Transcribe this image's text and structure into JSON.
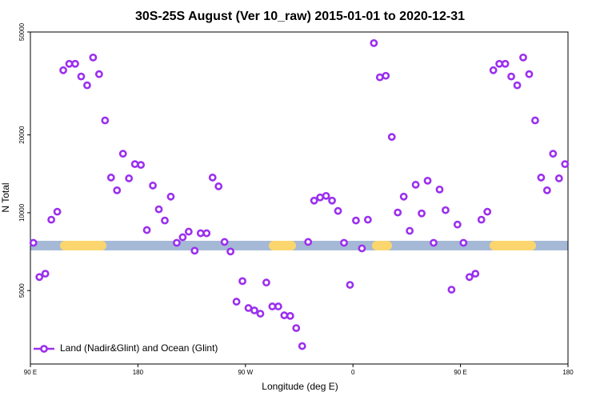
{
  "chart_data": {
    "type": "scatter",
    "title": "30S-25S August (Ver 10_raw)   2015-01-01 to 2020-12-31",
    "x_label": "Longitude (deg E)",
    "y_label": "N Total",
    "log_y": true,
    "legend_position": "bottom-left",
    "xlim": [
      90,
      540
    ],
    "xticks": [
      {
        "value": 90,
        "label": "90 E"
      },
      {
        "value": 180,
        "label": "180"
      },
      {
        "value": 270,
        "label": "90 W"
      },
      {
        "value": 360,
        "label": "0"
      },
      {
        "value": 450,
        "label": "90 E"
      },
      {
        "value": 540,
        "label": "180"
      }
    ],
    "ylim": [
      2600,
      50000
    ],
    "yticks": [
      5000,
      10000,
      20000,
      50000
    ],
    "x": [
      92.5,
      97.5,
      102.5,
      107.5,
      112.5,
      117.5,
      122.5,
      127.5,
      132.5,
      137.5,
      142.5,
      147.5,
      152.5,
      157.5,
      162.5,
      167.5,
      172.5,
      177.5,
      182.5,
      187.5,
      192.5,
      197.5,
      202.5,
      207.5,
      212.5,
      217.5,
      222.5,
      227.5,
      232.5,
      237.5,
      242.5,
      247.5,
      252.5,
      257.5,
      262.5,
      267.5,
      272.5,
      277.5,
      282.5,
      287.5,
      292.5,
      297.5,
      302.5,
      307.5,
      312.5,
      317.5,
      322.5,
      327.5,
      332.5,
      337.5,
      342.5,
      347.5,
      352.5,
      357.5,
      362.5,
      367.5,
      372.5,
      377.5,
      382.5,
      387.5,
      392.5,
      397.5,
      402.5,
      407.5,
      412.5,
      417.5,
      422.5,
      427.5,
      432.5,
      437.5,
      442.5,
      447.5,
      452.5,
      457.5,
      462.5,
      467.5,
      472.5,
      477.5,
      482.5,
      487.5,
      492.5,
      497.5,
      502.5,
      507.5,
      512.5,
      517.5,
      522.5,
      527.5,
      532.5,
      537.5
    ],
    "series": [
      {
        "name": "Land (Nadir&Glint) and Ocean (Glint)",
        "color": "#9b30ef",
        "values": [
          7650,
          5640,
          5810,
          9400,
          10090,
          35570,
          37670,
          37670,
          33640,
          31100,
          39850,
          34350,
          22750,
          13680,
          12210,
          16910,
          13580,
          15420,
          15310,
          8570,
          12740,
          10310,
          9330,
          11540,
          7650,
          8040,
          8450,
          7130,
          8330,
          8330,
          13680,
          12650,
          7710,
          7080,
          4530,
          5440,
          4280,
          4190,
          4070,
          5370,
          4340,
          4340,
          4010,
          3990,
          3580,
          3050,
          7710,
          11140,
          11460,
          11620,
          11140,
          10160,
          7650,
          5260,
          9330,
          7280,
          9400,
          45300,
          33400,
          33860,
          19640,
          10020,
          11540,
          8510,
          12830,
          9940,
          13300,
          7650,
          12300,
          10230,
          5040,
          9000,
          7650,
          5640,
          5810,
          9400,
          10090,
          35570,
          37670,
          37670,
          33640,
          31100,
          39850,
          34350,
          22750,
          13680,
          12210,
          16910,
          13580,
          15420
        ]
      }
    ]
  }
}
